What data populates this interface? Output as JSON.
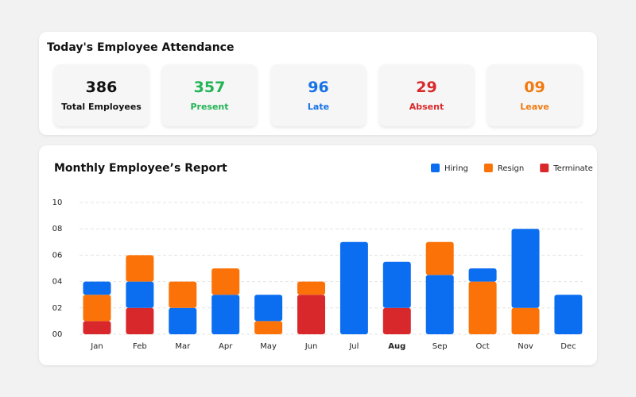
{
  "attendance": {
    "title": "Today's Employee Attendance",
    "stats": [
      {
        "value": "386",
        "label": "Total Employees"
      },
      {
        "value": "357",
        "label": "Present"
      },
      {
        "value": "96",
        "label": "Late"
      },
      {
        "value": "29",
        "label": "Absent"
      },
      {
        "value": "09",
        "label": "Leave"
      }
    ]
  },
  "chart_data": {
    "type": "stacked-bar",
    "title": "Monthly Employee’s Report",
    "categories": [
      "Jan",
      "Feb",
      "Mar",
      "Apr",
      "May",
      "Jun",
      "Jul",
      "Aug",
      "Sep",
      "Oct",
      "Nov",
      "Dec"
    ],
    "series": [
      {
        "name": "Hiring",
        "color": "#0b6ef0",
        "values": [
          1,
          2,
          2,
          3,
          2,
          0,
          7,
          3.5,
          4.5,
          1,
          6,
          3
        ]
      },
      {
        "name": "Resign",
        "color": "#fb7308",
        "values": [
          2,
          2,
          2,
          2,
          1,
          1,
          0,
          0,
          2.5,
          4,
          2,
          0
        ]
      },
      {
        "name": "Terminate",
        "color": "#d9282c",
        "values": [
          1,
          2,
          0,
          0,
          0,
          3,
          0,
          2,
          0,
          0,
          0,
          0
        ]
      }
    ],
    "ylim": [
      0,
      10
    ],
    "yticks": [
      {
        "value": 0,
        "label": "00"
      },
      {
        "value": 2,
        "label": "02"
      },
      {
        "value": 4,
        "label": "04"
      },
      {
        "value": 6,
        "label": "06"
      },
      {
        "value": 8,
        "label": "08"
      },
      10
    ],
    "grid": true,
    "legend": "top-right"
  }
}
